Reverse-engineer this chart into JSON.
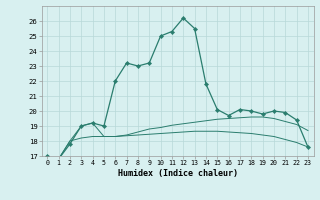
{
  "xlabel": "Humidex (Indice chaleur)",
  "x": [
    0,
    1,
    2,
    3,
    4,
    5,
    6,
    7,
    8,
    9,
    10,
    11,
    12,
    13,
    14,
    15,
    16,
    17,
    18,
    19,
    20,
    21,
    22,
    23
  ],
  "line1": [
    17.0,
    16.8,
    17.8,
    19.0,
    19.2,
    19.0,
    22.0,
    23.2,
    23.0,
    23.2,
    25.0,
    25.3,
    26.2,
    25.5,
    21.8,
    20.1,
    19.7,
    20.1,
    20.0,
    19.8,
    20.0,
    19.9,
    19.4,
    17.6
  ],
  "line2": [
    17.0,
    16.8,
    18.0,
    19.0,
    19.2,
    18.3,
    18.3,
    18.4,
    18.6,
    18.8,
    18.9,
    19.05,
    19.15,
    19.25,
    19.35,
    19.45,
    19.5,
    19.55,
    19.6,
    19.6,
    19.5,
    19.3,
    19.1,
    18.7
  ],
  "line3": [
    17.0,
    16.8,
    18.0,
    18.2,
    18.3,
    18.3,
    18.3,
    18.35,
    18.4,
    18.45,
    18.5,
    18.55,
    18.6,
    18.65,
    18.65,
    18.65,
    18.6,
    18.55,
    18.5,
    18.4,
    18.3,
    18.1,
    17.9,
    17.6
  ],
  "line_color": "#2a7d6e",
  "bg_color": "#d8f0f0",
  "grid_color": "#b8d8d8",
  "ylim": [
    17,
    27
  ],
  "yticks": [
    17,
    18,
    19,
    20,
    21,
    22,
    23,
    24,
    25,
    26
  ],
  "xticks": [
    0,
    1,
    2,
    3,
    4,
    5,
    6,
    7,
    8,
    9,
    10,
    11,
    12,
    13,
    14,
    15,
    16,
    17,
    18,
    19,
    20,
    21,
    22,
    23
  ]
}
